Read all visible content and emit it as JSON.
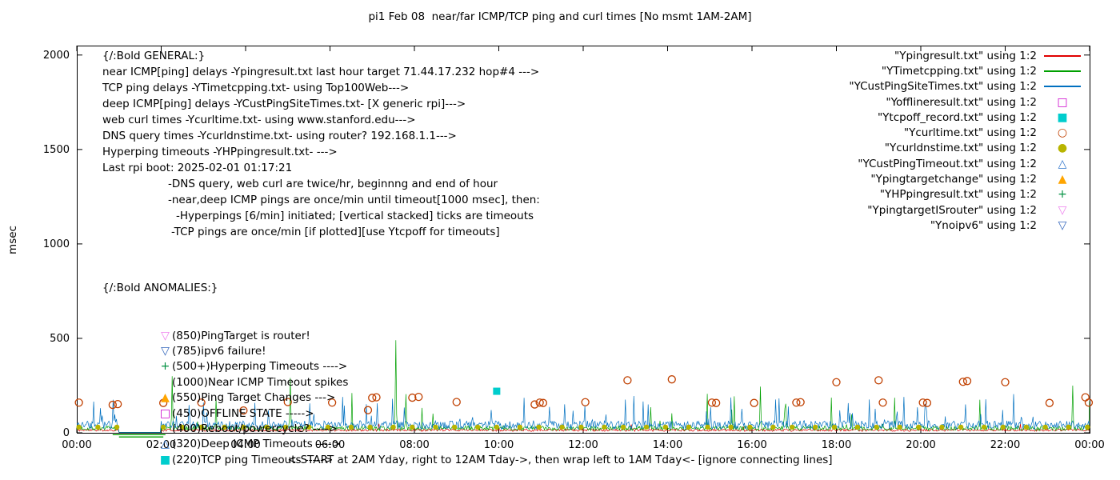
{
  "title": "pi1 Feb 08  near/far ICMP/TCP ping and curl times [No msmt 1AM-2AM]",
  "ylabel": "msec",
  "xlabel": "<-START at 2AM Yday, right to 12AM Tday->, then wrap left to 1AM Tday<- [ignore connecting lines]",
  "legend": [
    {
      "label": "\"Ypingresult.txt\" using 1:2",
      "sample": "line",
      "color": "#e00000"
    },
    {
      "label": "\"YTimetcpping.txt\" using 1:2",
      "sample": "line",
      "color": "#00a000"
    },
    {
      "label": "\"YCustPingSiteTimes.txt\" using 1:2",
      "sample": "line",
      "color": "#0070c0"
    },
    {
      "label": "\"Yofflineresult.txt\" using 1:2",
      "sample": "square-open",
      "color": "#cc00cc"
    },
    {
      "label": "\"Ytcpoff_record.txt\" using 1:2",
      "sample": "square-filled",
      "color": "#00cdcd"
    },
    {
      "label": "\"Ycurltime.txt\" using 1:2",
      "sample": "circle-open",
      "color": "#c04000"
    },
    {
      "label": "\"Ycurldnstime.txt\" using 1:2",
      "sample": "circle-filled",
      "color": "#b8b400"
    },
    {
      "label": "\"YCustPingTimeout.txt\" using 1:2",
      "sample": "tri-up-open",
      "color": "#3377cc"
    },
    {
      "label": "\"Ypingtargetchange\" using 1:2",
      "sample": "tri-up-filled",
      "color": "#ffa500"
    },
    {
      "label": "\"YHPpingresult.txt\" using 1:2",
      "sample": "plus",
      "color": "#009040"
    },
    {
      "label": "\"YpingtargetISrouter\" using 1:2",
      "sample": "tri-down-open",
      "color": "#ee82ee"
    },
    {
      "label": "\"Ynoipv6\" using 1:2",
      "sample": "tri-down-open",
      "color": "#3366bb"
    }
  ],
  "annotations": {
    "general": [
      {
        "text": "{/:Bold GENERAL:}",
        "indent": 0
      },
      {
        "text": "near ICMP[ping] delays -Ypingresult.txt last hour target 71.44.17.232 hop#4 --->",
        "indent": 0
      },
      {
        "text": "TCP ping delays -YTimetcpping.txt- using Top100Web--->",
        "indent": 0
      },
      {
        "text": "deep ICMP[ping] delays -YCustPingSiteTimes.txt- [X generic rpi]--->",
        "indent": 0
      },
      {
        "text": "web curl times -Ycurltime.txt- using www.stanford.edu--->",
        "indent": 0
      },
      {
        "text": "DNS query times -Ycurldnstime.txt- using router? 192.168.1.1--->",
        "indent": 0
      },
      {
        "text": "Hyperping timeouts -YHPpingresult.txt- --->",
        "indent": 0
      },
      {
        "text": "Last rpi boot: 2025-02-01 01:17:21",
        "indent": 0
      },
      {
        "text": "-DNS query, web curl are twice/hr, beginnng and end of hour",
        "indent": 82
      },
      {
        "text": "-near,deep ICMP pings are once/min until timeout[1000 msec], then:",
        "indent": 82
      },
      {
        "text": "-Hyperpings [6/min] initiated; [vertical stacked] ticks are timeouts",
        "indent": 92
      },
      {
        "text": "-TCP pings are once/min [if plotted][use Ytcpoff for timeouts]",
        "indent": 86
      }
    ],
    "anomalies_heading": "{/:Bold ANOMALIES:}",
    "anomalies": [
      {
        "marker": "tri-down-open",
        "color": "#ee82ee",
        "text": "(850)PingTarget is router!"
      },
      {
        "marker": "tri-down-open",
        "color": "#3366bb",
        "text": "(785)ipv6 failure!"
      },
      {
        "marker": "plus",
        "color": "#009040",
        "text": "(500+)Hyperping Timeouts ---->"
      },
      {
        "marker": "",
        "color": "",
        "text": "(1000)Near ICMP Timeout spikes"
      },
      {
        "marker": "tri-up-filled",
        "color": "#ffa500",
        "text": "(550)Ping Target Changes --->"
      },
      {
        "marker": "square-open",
        "color": "#cc00cc",
        "text": "(450)OFFLINE STATE ----->"
      },
      {
        "marker": "",
        "color": "",
        "text": "(400)Reboot/powercycle? ---->"
      },
      {
        "marker": "tri-up-open",
        "color": "#3377cc",
        "text": "(320)Deep ICMP Timeouts ---->"
      },
      {
        "marker": "square-filled",
        "color": "#00cdcd",
        "text": "(220)TCP ping Timeouts ----->"
      }
    ]
  },
  "chart_data": {
    "type": "line+scatter",
    "title": "pi1 Feb 08  near/far ICMP/TCP ping and curl times [No msmt 1AM-2AM]",
    "xlabel": "<-START at 2AM Yday, right to 12AM Tday->, then wrap left to 1AM Tday<- [ignore connecting lines]",
    "ylabel": "msec",
    "grid": false,
    "legend_position": "top-right-inside",
    "x_range_hours": [
      0,
      24
    ],
    "y_range_msec": [
      0,
      2050
    ],
    "y_ticks": [
      0,
      500,
      1000,
      1500,
      2000
    ],
    "x_ticks": {
      "hours": [
        0,
        2,
        4,
        6,
        8,
        10,
        12,
        14,
        16,
        18,
        20,
        22,
        24
      ],
      "labels": [
        "00:00",
        "02:00",
        "04:00",
        "06:00",
        "08:00",
        "10:00",
        "12:00",
        "14:00",
        "16:00",
        "18:00",
        "20:00",
        "22:00",
        "00:00"
      ]
    },
    "no_measurement_window": "01:00-02:00",
    "line_series": [
      {
        "name": "Ypingresult.txt",
        "color": "#e00000",
        "seed": 11,
        "base": 16,
        "thr": 0.99,
        "amp": 40,
        "spikes": []
      },
      {
        "name": "YTimetcpping.txt",
        "color": "#00a000",
        "seed": 7,
        "base": 32,
        "thr": 0.985,
        "amp": 200,
        "spikes": [
          [
            2.25,
            300
          ],
          [
            3.3,
            180
          ],
          [
            5.05,
            290
          ],
          [
            7.55,
            490
          ],
          [
            7.8,
            205
          ],
          [
            16.2,
            245
          ],
          [
            23.6,
            250
          ]
        ]
      },
      {
        "name": "YCustPingSiteTimes.txt",
        "color": "#0070c0",
        "seed": 3,
        "base": 60,
        "thr": 0.93,
        "amp": 130,
        "spikes": [
          [
            0.4,
            165
          ],
          [
            6.3,
            190
          ],
          [
            10.6,
            185
          ],
          [
            13.2,
            195
          ],
          [
            19.6,
            190
          ],
          [
            22.2,
            205
          ]
        ]
      }
    ],
    "no_msmt_segments": [
      {
        "x1": 0.85,
        "x2": 2.1,
        "y": -10,
        "color": "#00a000"
      },
      {
        "x1": 1.0,
        "x2": 2.05,
        "y": -22,
        "color": "#00a000"
      }
    ],
    "point_series": [
      {
        "name": "Ycurltime.txt",
        "marker": "circle-open",
        "color": "#c04000",
        "points": [
          [
            0.05,
            160
          ],
          [
            0.85,
            148
          ],
          [
            0.97,
            152
          ],
          [
            2.05,
            158
          ],
          [
            2.95,
            160
          ],
          [
            3.95,
            118
          ],
          [
            5.0,
            163
          ],
          [
            6.05,
            160
          ],
          [
            6.9,
            120
          ],
          [
            7.0,
            185
          ],
          [
            7.1,
            188
          ],
          [
            7.95,
            186
          ],
          [
            8.1,
            190
          ],
          [
            9.0,
            163
          ],
          [
            10.85,
            150
          ],
          [
            10.97,
            160
          ],
          [
            11.05,
            158
          ],
          [
            12.05,
            162
          ],
          [
            13.05,
            278
          ],
          [
            14.1,
            283
          ],
          [
            15.05,
            160
          ],
          [
            15.15,
            158
          ],
          [
            16.05,
            158
          ],
          [
            17.05,
            160
          ],
          [
            17.15,
            162
          ],
          [
            18.0,
            268
          ],
          [
            19.0,
            278
          ],
          [
            19.1,
            160
          ],
          [
            20.05,
            160
          ],
          [
            20.15,
            158
          ],
          [
            21.0,
            270
          ],
          [
            21.1,
            274
          ],
          [
            22.0,
            268
          ],
          [
            23.05,
            158
          ],
          [
            23.9,
            188
          ],
          [
            23.98,
            160
          ]
        ]
      },
      {
        "name": "Ycurldnstime.txt",
        "marker": "circle-filled",
        "color": "#b8b400",
        "y": 30,
        "x": [
          0.05,
          0.5,
          0.95,
          2.05,
          2.5,
          2.95,
          3.5,
          3.95,
          4.5,
          4.95,
          5.5,
          5.95,
          6.5,
          6.95,
          7.5,
          7.95,
          8.5,
          8.95,
          9.5,
          9.95,
          10.5,
          10.95,
          11.5,
          11.95,
          12.5,
          12.95,
          13.5,
          13.95,
          14.5,
          14.95,
          15.5,
          15.95,
          16.5,
          16.95,
          17.5,
          17.95,
          18.5,
          18.95,
          19.5,
          19.95,
          20.5,
          20.95,
          21.5,
          21.95,
          22.5,
          22.95,
          23.5,
          23.95
        ]
      },
      {
        "name": "Ytcpoff_record.txt",
        "marker": "square-filled",
        "color": "#00cdcd",
        "points": [
          [
            9.95,
            220
          ]
        ]
      }
    ]
  }
}
